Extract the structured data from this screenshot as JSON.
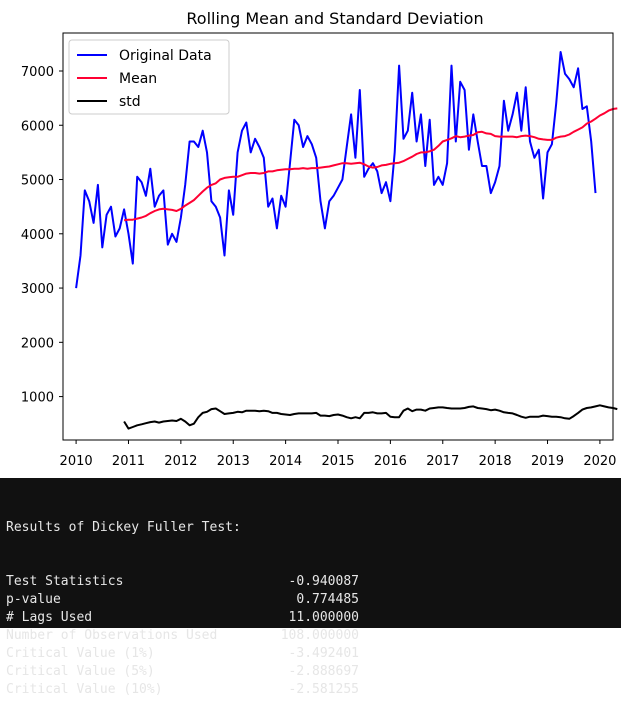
{
  "chart_data": {
    "type": "line",
    "title": "Rolling Mean and Standard Deviation",
    "xlabel": "",
    "ylabel": "",
    "xlim": [
      2009.75,
      2020.25
    ],
    "ylim": [
      200,
      7700
    ],
    "x_ticks": [
      "2010",
      "2011",
      "2012",
      "2013",
      "2014",
      "2015",
      "2016",
      "2017",
      "2018",
      "2019",
      "2020"
    ],
    "y_ticks": [
      "1000",
      "2000",
      "3000",
      "4000",
      "5000",
      "6000",
      "7000"
    ],
    "grid": false,
    "legend_position": "top-left",
    "series": [
      {
        "name": "Original Data",
        "color": "#0000ff",
        "start": 2010.0,
        "step": 0.08333,
        "values": [
          3000,
          3600,
          4800,
          4600,
          4200,
          4900,
          3750,
          4350,
          4500,
          3950,
          4100,
          4450,
          4000,
          3450,
          5050,
          4950,
          4700,
          5200,
          4500,
          4700,
          4800,
          3800,
          4000,
          3850,
          4300,
          4900,
          5700,
          5700,
          5600,
          5900,
          5500,
          4600,
          4500,
          4300,
          3600,
          4800,
          4350,
          5500,
          5900,
          6050,
          5500,
          5750,
          5600,
          5400,
          4500,
          4650,
          4100,
          4700,
          4500,
          5300,
          6100,
          6000,
          5600,
          5800,
          5650,
          5400,
          4600,
          4100,
          4600,
          4700,
          4850,
          5000,
          5600,
          6200,
          5400,
          6650,
          5050,
          5200,
          5300,
          5150,
          4750,
          4950,
          4600,
          5500,
          7100,
          5750,
          5900,
          6600,
          5700,
          6200,
          5250,
          6100,
          4900,
          5050,
          4900,
          5300,
          7100,
          5700,
          6800,
          6650,
          5550,
          6200,
          5700,
          5250,
          5250,
          4750,
          4950,
          5250,
          6450,
          5900,
          6200,
          6600,
          5900,
          6700,
          5700,
          5400,
          5550,
          4650,
          5500,
          5650,
          6400,
          7350,
          6950,
          6850,
          6700,
          7050,
          6300,
          6350,
          5700,
          4750
        ]
      },
      {
        "name": "Mean",
        "color": "#ff0033",
        "start": 2010.91667,
        "step": 0.08333,
        "values": [
          4250,
          4260,
          4260,
          4280,
          4300,
          4330,
          4380,
          4420,
          4450,
          4460,
          4450,
          4440,
          4420,
          4460,
          4520,
          4570,
          4620,
          4700,
          4780,
          4850,
          4900,
          4930,
          5000,
          5030,
          5040,
          5050,
          5050,
          5080,
          5110,
          5120,
          5120,
          5110,
          5120,
          5150,
          5150,
          5170,
          5180,
          5190,
          5190,
          5200,
          5200,
          5210,
          5200,
          5210,
          5210,
          5220,
          5230,
          5240,
          5260,
          5280,
          5300,
          5300,
          5290,
          5300,
          5310,
          5280,
          5240,
          5220,
          5230,
          5260,
          5270,
          5290,
          5300,
          5310,
          5340,
          5380,
          5420,
          5470,
          5500,
          5500,
          5520,
          5550,
          5620,
          5700,
          5730,
          5760,
          5800,
          5780,
          5790,
          5810,
          5820,
          5870,
          5880,
          5850,
          5840,
          5800,
          5790,
          5790,
          5790,
          5790,
          5780,
          5800,
          5810,
          5800,
          5780,
          5750,
          5740,
          5730,
          5730,
          5770,
          5790,
          5800,
          5830,
          5880,
          5920,
          5960,
          6030,
          6070,
          6120,
          6180,
          6220,
          6270,
          6300,
          6310
        ]
      },
      {
        "name": "std",
        "color": "#000000",
        "start": 2010.91667,
        "step": 0.08333,
        "values": [
          540,
          410,
          440,
          470,
          490,
          510,
          530,
          540,
          520,
          540,
          550,
          560,
          550,
          590,
          540,
          470,
          500,
          620,
          700,
          720,
          770,
          780,
          730,
          680,
          690,
          700,
          720,
          710,
          740,
          740,
          740,
          730,
          740,
          730,
          700,
          700,
          680,
          670,
          660,
          680,
          690,
          690,
          690,
          690,
          700,
          650,
          650,
          640,
          660,
          670,
          650,
          620,
          600,
          620,
          600,
          700,
          700,
          710,
          690,
          690,
          700,
          630,
          620,
          620,
          740,
          780,
          730,
          760,
          760,
          740,
          780,
          790,
          800,
          800,
          790,
          780,
          780,
          780,
          790,
          810,
          820,
          790,
          780,
          770,
          750,
          760,
          740,
          710,
          700,
          690,
          660,
          630,
          610,
          630,
          630,
          630,
          650,
          640,
          630,
          630,
          620,
          600,
          590,
          640,
          700,
          760,
          790,
          800,
          820,
          840,
          820,
          800,
          790,
          770
        ]
      }
    ]
  },
  "console": {
    "header": "Results of Dickey Fuller Test:",
    "rows": [
      {
        "label": "Test Statistics",
        "value": "-0.940087"
      },
      {
        "label": "p-value",
        "value": "0.774485"
      },
      {
        "label": "# Lags Used",
        "value": "11.000000"
      },
      {
        "label": "Number of Observations Used",
        "value": "108.000000"
      },
      {
        "label": "Critical Value (1%)",
        "value": "-3.492401"
      },
      {
        "label": "Critical Value (5%)",
        "value": "-2.888697"
      },
      {
        "label": "Critical Value (10%)",
        "value": "-2.581255"
      }
    ]
  }
}
